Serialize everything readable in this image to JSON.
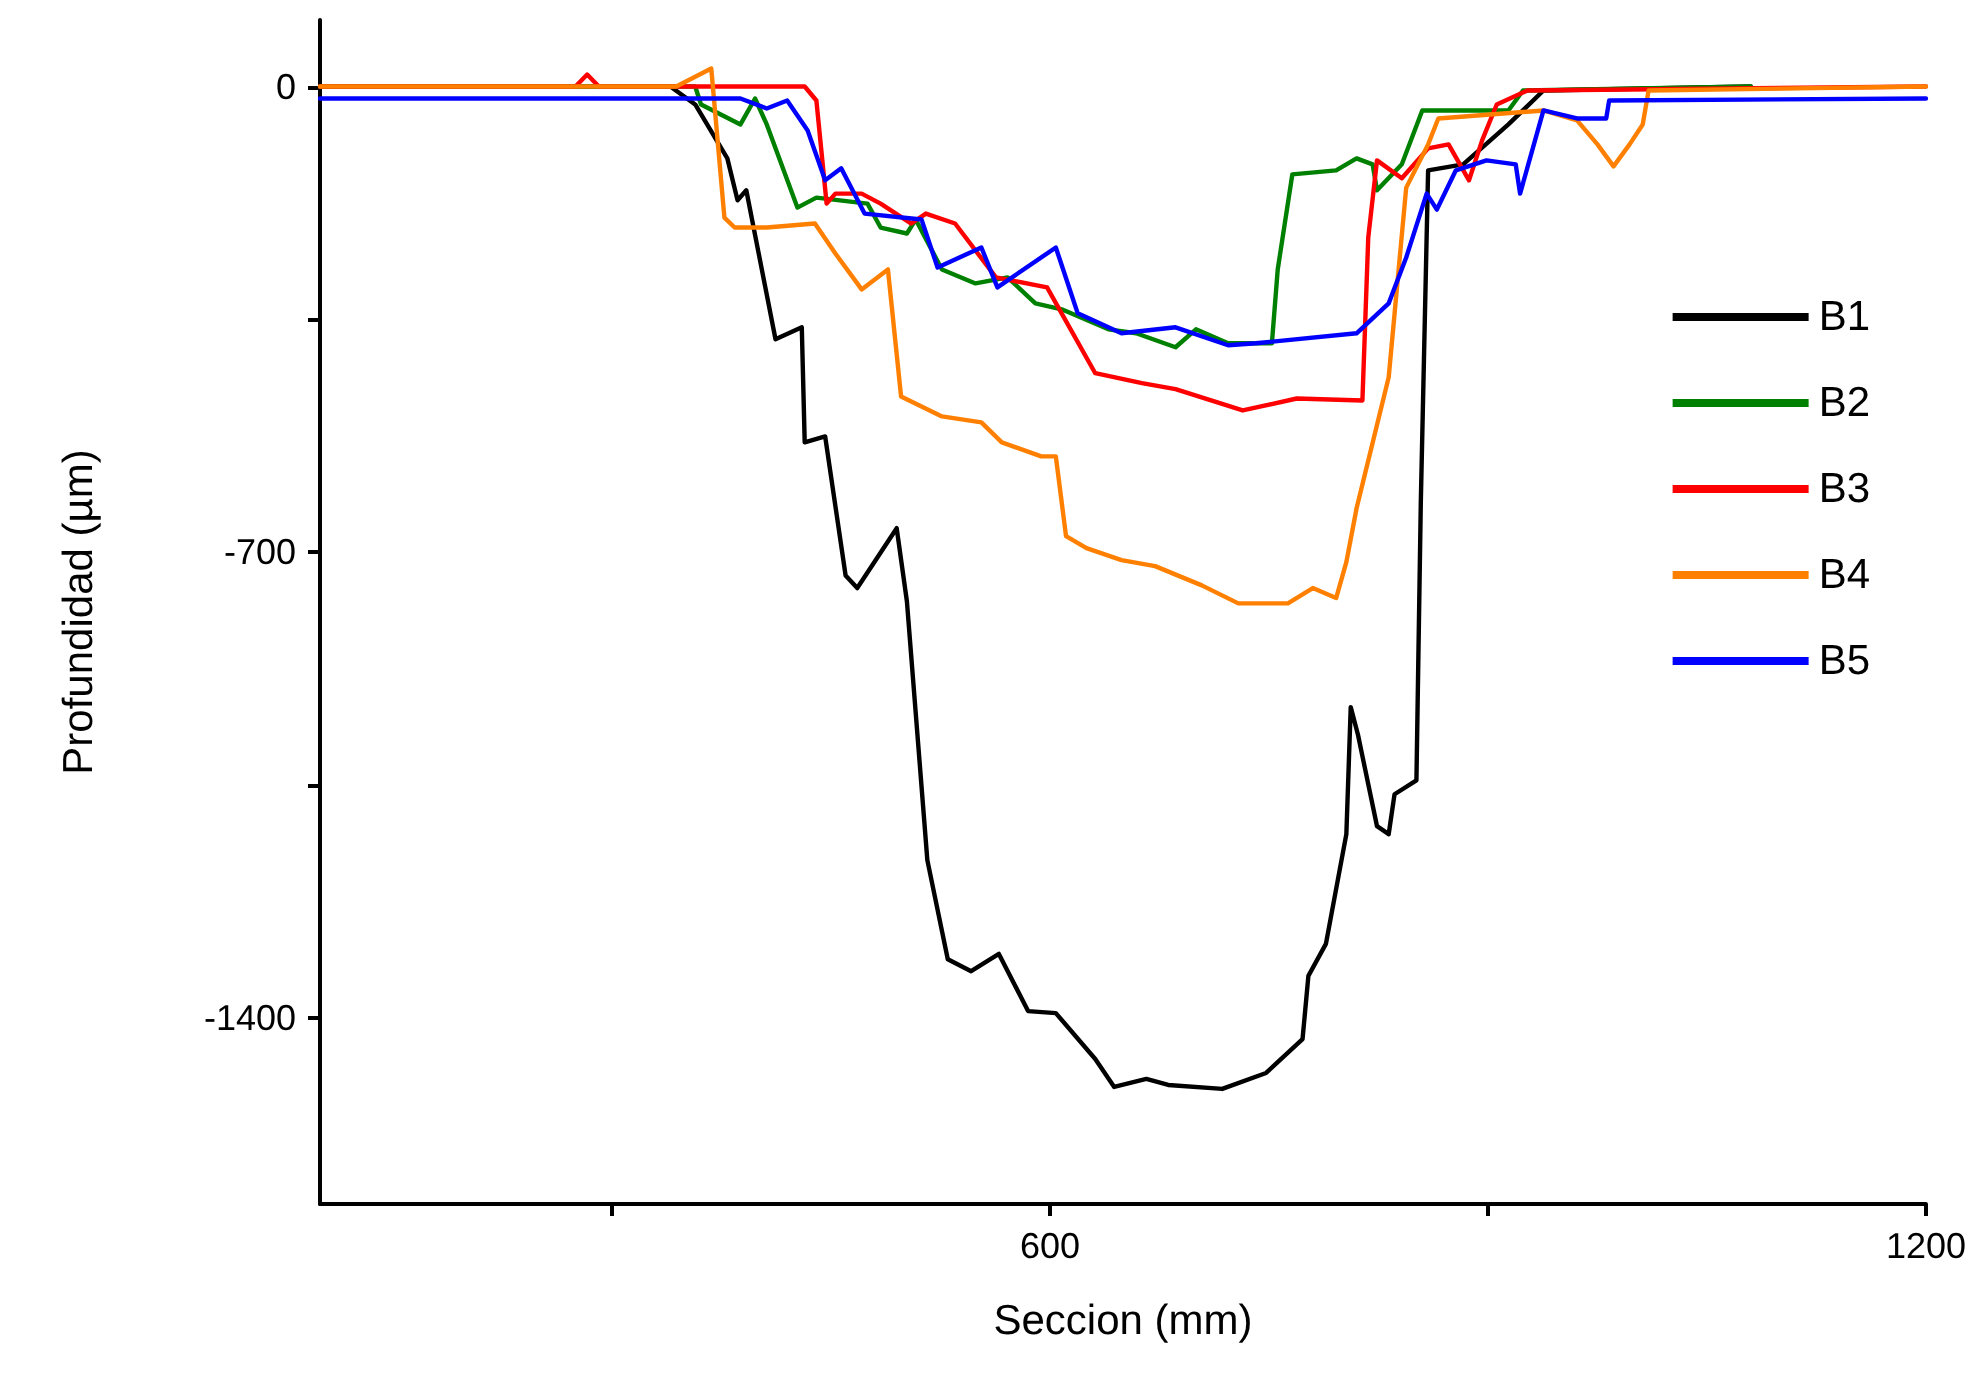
{
  "chart_data": {
    "type": "line",
    "xlabel": "Seccion (mm)",
    "ylabel": "Profundidad (µm)",
    "xlim": [
      100,
      1200
    ],
    "ylim": [
      -1680,
      100
    ],
    "xticks": [
      {
        "value": 300,
        "label": null
      },
      600,
      {
        "value": 900,
        "label": null
      },
      1200
    ],
    "yticks": [
      0,
      {
        "value": -350,
        "label": null
      },
      -700,
      {
        "value": -1050,
        "label": null
      },
      -1400
    ],
    "grid": false,
    "legend": "right",
    "marker": "none",
    "line_style": "solid",
    "series": [
      {
        "name": "B1",
        "color": "#000000",
        "x": [
          100,
          340,
          357,
          379,
          386,
          392,
          412,
          430,
          432,
          446,
          460,
          468,
          495,
          502,
          516,
          530,
          546,
          565,
          585,
          604,
          631,
          644,
          666,
          681,
          718,
          748,
          773,
          777,
          789,
          803,
          806,
          811,
          824,
          832,
          836,
          851,
          854,
          859,
          883,
          914,
          938,
          1080
        ],
        "values": [
          0,
          0,
          -27,
          -108,
          -171,
          -156,
          -380,
          -362,
          -535,
          -526,
          -735,
          -754,
          -664,
          -774,
          -1163,
          -1312,
          -1330,
          -1304,
          -1390,
          -1393,
          -1462,
          -1504,
          -1492,
          -1501,
          -1507,
          -1483,
          -1432,
          -1337,
          -1289,
          -1124,
          -933,
          -975,
          -1112,
          -1124,
          -1064,
          -1043,
          -625,
          -126,
          -117,
          -57,
          -6,
          0
        ]
      },
      {
        "name": "B2",
        "color": "#008000",
        "x": [
          100,
          357,
          361,
          388,
          398,
          406,
          427,
          440,
          475,
          484,
          502,
          508,
          526,
          549,
          571,
          590,
          608,
          640,
          659,
          686,
          700,
          722,
          752,
          756,
          766,
          796,
          810,
          821,
          824,
          841,
          855,
          892,
          914,
          924,
          1080
        ],
        "values": [
          0,
          0,
          -27,
          -57,
          -18,
          -57,
          -182,
          -167,
          -176,
          -212,
          -221,
          -200,
          -275,
          -296,
          -287,
          -326,
          -335,
          -365,
          -371,
          -392,
          -365,
          -386,
          -386,
          -275,
          -132,
          -126,
          -108,
          -117,
          -156,
          -117,
          -36,
          -36,
          -36,
          -6,
          0
        ]
      },
      {
        "name": "B3",
        "color": "#ff0000",
        "x": [
          100,
          275,
          283,
          291,
          432,
          440,
          447,
          453,
          471,
          484,
          505,
          515,
          535,
          563,
          598,
          631,
          663,
          686,
          732,
          769,
          814,
          818,
          824,
          841,
          859,
          873,
          887,
          896,
          906,
          927,
          1200
        ],
        "values": [
          0,
          0,
          18,
          0,
          0,
          -21,
          -176,
          -161,
          -161,
          -176,
          -206,
          -191,
          -206,
          -287,
          -302,
          -431,
          -446,
          -455,
          -487,
          -469,
          -472,
          -227,
          -111,
          -138,
          -93,
          -87,
          -141,
          -81,
          -27,
          -6,
          0
        ]
      },
      {
        "name": "B4",
        "color": "#ff8000",
        "x": [
          100,
          344,
          368,
          377,
          384,
          406,
          439,
          453,
          471,
          489,
          498,
          526,
          553,
          567,
          594,
          604,
          611,
          625,
          649,
          672,
          704,
          729,
          763,
          780,
          796,
          803,
          810,
          832,
          844,
          859,
          866,
          938,
          961,
          975,
          986,
          997,
          1006,
          1010,
          1200
        ],
        "values": [
          0,
          0,
          27,
          -197,
          -212,
          -212,
          -206,
          -251,
          -305,
          -275,
          -466,
          -496,
          -505,
          -535,
          -556,
          -556,
          -676,
          -694,
          -712,
          -721,
          -750,
          -777,
          -777,
          -754,
          -769,
          -715,
          -634,
          -437,
          -152,
          -87,
          -48,
          -36,
          -51,
          -87,
          -120,
          -87,
          -57,
          -6,
          0
        ]
      },
      {
        "name": "B5",
        "color": "#0000ff",
        "x": [
          100,
          388,
          406,
          420,
          434,
          446,
          457,
          473,
          512,
          523,
          553,
          564,
          604,
          619,
          649,
          686,
          722,
          741,
          810,
          832,
          844,
          858,
          865,
          878,
          899,
          919,
          922,
          938,
          961,
          981,
          983,
          1200
        ],
        "values": [
          -18,
          -18,
          -33,
          -21,
          -66,
          -141,
          -123,
          -191,
          -200,
          -272,
          -242,
          -302,
          -242,
          -341,
          -371,
          -362,
          -389,
          -386,
          -371,
          -326,
          -257,
          -161,
          -185,
          -126,
          -111,
          -117,
          -161,
          -36,
          -48,
          -48,
          -21,
          -18
        ]
      }
    ]
  }
}
